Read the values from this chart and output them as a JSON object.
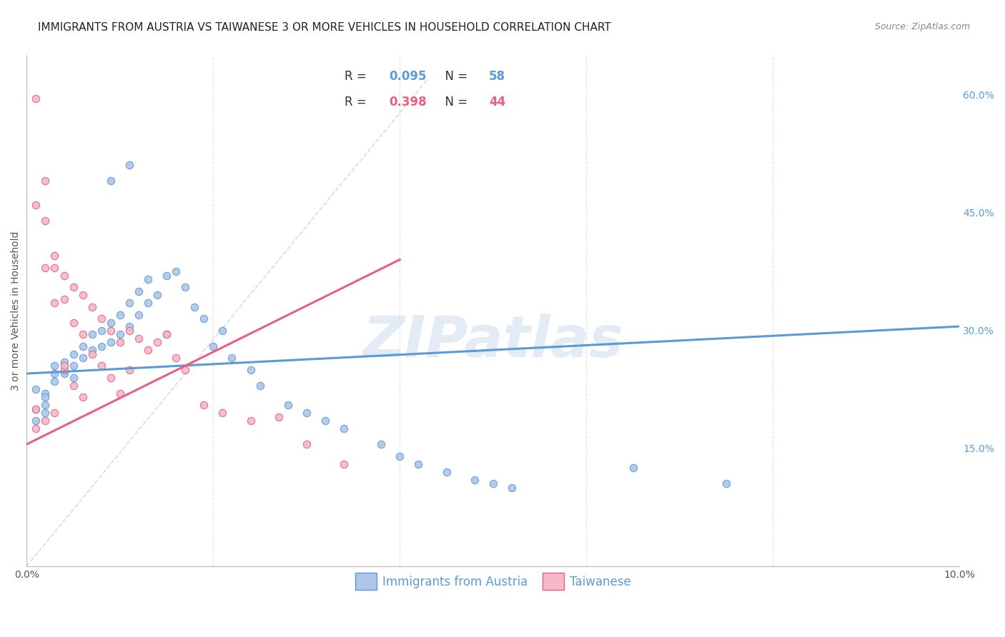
{
  "title": "IMMIGRANTS FROM AUSTRIA VS TAIWANESE 3 OR MORE VEHICLES IN HOUSEHOLD CORRELATION CHART",
  "source": "Source: ZipAtlas.com",
  "ylabel": "3 or more Vehicles in Household",
  "xlim": [
    0.0,
    0.1
  ],
  "ylim": [
    0.0,
    0.65
  ],
  "x_ticks": [
    0.0,
    0.02,
    0.04,
    0.06,
    0.08,
    0.1
  ],
  "x_tick_labels": [
    "0.0%",
    "",
    "",
    "",
    "",
    "10.0%"
  ],
  "y_ticks_right": [
    0.0,
    0.15,
    0.3,
    0.45,
    0.6
  ],
  "y_tick_labels_right": [
    "",
    "15.0%",
    "30.0%",
    "45.0%",
    "60.0%"
  ],
  "austria_R": 0.095,
  "austria_N": 58,
  "taiwanese_R": 0.398,
  "taiwanese_N": 44,
  "austria_color": "#aec6e8",
  "taiwanese_color": "#f4b8c8",
  "austria_line_color": "#5b9bd5",
  "taiwanese_line_color": "#e8607a",
  "austria_trend_x": [
    0.0,
    0.1
  ],
  "austria_trend_y": [
    0.245,
    0.305
  ],
  "taiwanese_trend_x": [
    0.0,
    0.04
  ],
  "taiwanese_trend_y": [
    0.155,
    0.39
  ],
  "austria_scatter_x": [
    0.001,
    0.001,
    0.001,
    0.002,
    0.002,
    0.002,
    0.002,
    0.003,
    0.003,
    0.003,
    0.004,
    0.004,
    0.005,
    0.005,
    0.005,
    0.006,
    0.006,
    0.007,
    0.007,
    0.008,
    0.008,
    0.009,
    0.009,
    0.01,
    0.01,
    0.011,
    0.011,
    0.012,
    0.012,
    0.013,
    0.013,
    0.014,
    0.015,
    0.015,
    0.016,
    0.017,
    0.018,
    0.019,
    0.02,
    0.021,
    0.022,
    0.024,
    0.025,
    0.028,
    0.03,
    0.032,
    0.034,
    0.038,
    0.04,
    0.042,
    0.045,
    0.048,
    0.05,
    0.052,
    0.065,
    0.075,
    0.009,
    0.011
  ],
  "austria_scatter_y": [
    0.225,
    0.2,
    0.185,
    0.22,
    0.215,
    0.205,
    0.195,
    0.255,
    0.245,
    0.235,
    0.26,
    0.245,
    0.27,
    0.255,
    0.24,
    0.28,
    0.265,
    0.295,
    0.275,
    0.3,
    0.28,
    0.31,
    0.285,
    0.32,
    0.295,
    0.335,
    0.305,
    0.35,
    0.32,
    0.365,
    0.335,
    0.345,
    0.37,
    0.295,
    0.375,
    0.355,
    0.33,
    0.315,
    0.28,
    0.3,
    0.265,
    0.25,
    0.23,
    0.205,
    0.195,
    0.185,
    0.175,
    0.155,
    0.14,
    0.13,
    0.12,
    0.11,
    0.105,
    0.1,
    0.125,
    0.105,
    0.49,
    0.51
  ],
  "taiwanese_scatter_x": [
    0.001,
    0.001,
    0.001,
    0.002,
    0.002,
    0.002,
    0.003,
    0.003,
    0.003,
    0.004,
    0.004,
    0.004,
    0.005,
    0.005,
    0.005,
    0.006,
    0.006,
    0.006,
    0.007,
    0.007,
    0.008,
    0.008,
    0.009,
    0.009,
    0.01,
    0.01,
    0.011,
    0.011,
    0.012,
    0.013,
    0.014,
    0.015,
    0.016,
    0.017,
    0.019,
    0.021,
    0.024,
    0.027,
    0.03,
    0.034,
    0.001,
    0.002,
    0.003,
    0.004
  ],
  "taiwanese_scatter_y": [
    0.595,
    0.2,
    0.175,
    0.49,
    0.38,
    0.185,
    0.38,
    0.335,
    0.195,
    0.37,
    0.34,
    0.25,
    0.355,
    0.31,
    0.23,
    0.345,
    0.295,
    0.215,
    0.33,
    0.27,
    0.315,
    0.255,
    0.3,
    0.24,
    0.285,
    0.22,
    0.3,
    0.25,
    0.29,
    0.275,
    0.285,
    0.295,
    0.265,
    0.25,
    0.205,
    0.195,
    0.185,
    0.19,
    0.155,
    0.13,
    0.46,
    0.44,
    0.395,
    0.255
  ],
  "background_color": "#ffffff",
  "grid_color": "#dddddd",
  "title_fontsize": 11,
  "label_fontsize": 10,
  "tick_fontsize": 10,
  "legend_fontsize": 12,
  "watermark_text": "ZIPatlas",
  "watermark_color": "#ccdcee",
  "watermark_alpha": 0.55
}
